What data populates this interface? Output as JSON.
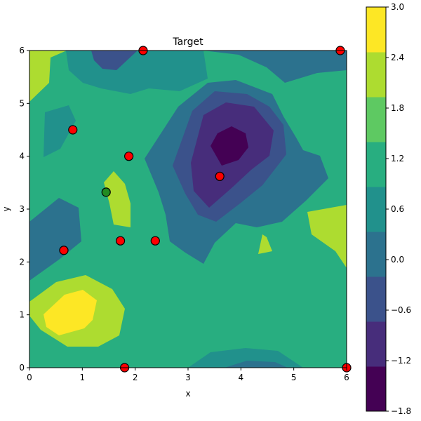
{
  "chart_data": {
    "type": "contour",
    "title": "Target",
    "xlabel": "x",
    "ylabel": "y",
    "xlim": [
      0,
      6
    ],
    "ylim": [
      0,
      6
    ],
    "x_ticks": [
      "0",
      "1",
      "2",
      "3",
      "4",
      "5",
      "6"
    ],
    "y_ticks": [
      "0",
      "1",
      "2",
      "3",
      "4",
      "5",
      "6"
    ],
    "colorbar": {
      "levels": [
        -1.8,
        -1.2,
        -0.6,
        0.0,
        0.6,
        1.2,
        1.8,
        2.4,
        3.0
      ],
      "tick_labels": [
        "−1.8",
        "−1.2",
        "−0.6",
        "0.0",
        "0.6",
        "1.2",
        "1.8",
        "2.4",
        "3.0"
      ],
      "colors": [
        "#440154",
        "#472d7b",
        "#3b528b",
        "#2c728e",
        "#21918c",
        "#28ae80",
        "#5ec962",
        "#addc30",
        "#fde725"
      ]
    },
    "red_points": [
      {
        "x": 0.65,
        "y": 2.22
      },
      {
        "x": 0.82,
        "y": 4.5
      },
      {
        "x": 1.72,
        "y": 2.4
      },
      {
        "x": 1.88,
        "y": 4.0
      },
      {
        "x": 2.15,
        "y": 6.0
      },
      {
        "x": 2.38,
        "y": 2.4
      },
      {
        "x": 3.6,
        "y": 3.62
      },
      {
        "x": 1.8,
        "y": 0.0
      },
      {
        "x": 5.88,
        "y": 6.0
      },
      {
        "x": 6.0,
        "y": 0.0
      }
    ],
    "green_points": [
      {
        "x": 1.45,
        "y": 3.32
      }
    ],
    "marker_colors": {
      "red": "#ff0000",
      "green": "#228b22",
      "edge": "#000000"
    }
  }
}
